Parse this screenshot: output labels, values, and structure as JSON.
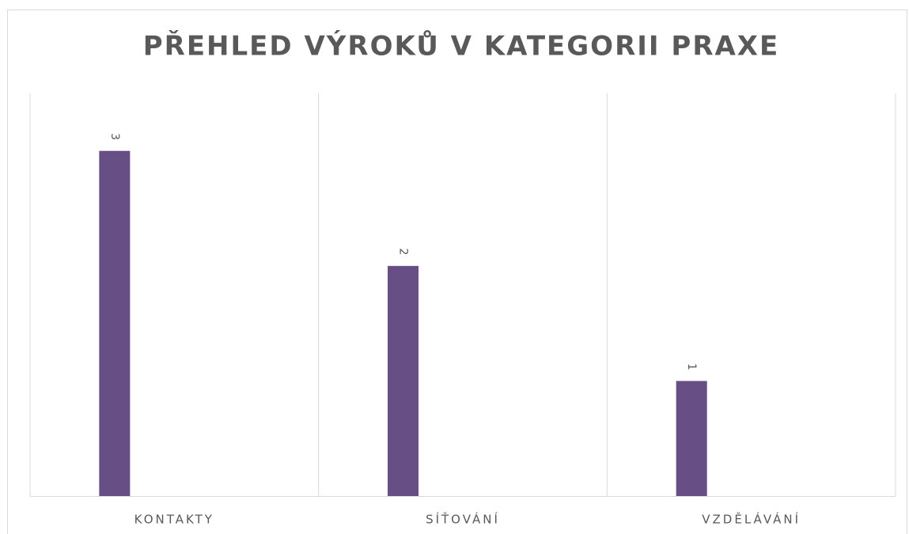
{
  "chart_data": {
    "type": "bar",
    "title": "PŘEHLED VÝROKŮ V KATEGORII PRAXE",
    "categories": [
      "KONTAKTY",
      "SÍŤOVÁNÍ",
      "VZDĚLÁVÁNÍ"
    ],
    "values": [
      3,
      2,
      1
    ],
    "color": "#674f86",
    "ylim": [
      0,
      3.5
    ]
  }
}
